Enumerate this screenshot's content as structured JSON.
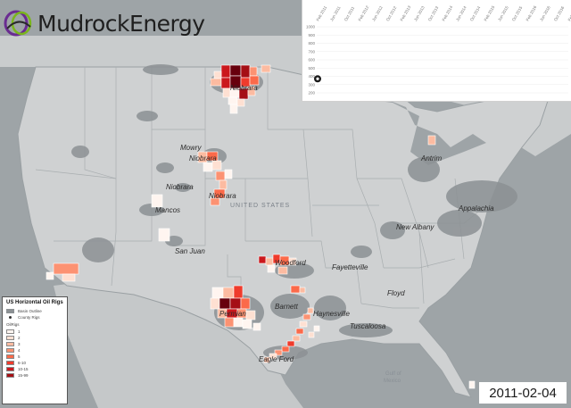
{
  "logo": {
    "text": "MudrockEnergy",
    "icon": "mudrock-logo-icon",
    "colors": {
      "dark": "#2a2a2a",
      "purple": "#6a2c91",
      "green": "#7ab51d"
    }
  },
  "chart": {
    "y_ticks": [
      "1000",
      "900",
      "800",
      "700",
      "600",
      "500",
      "400",
      "300",
      "200"
    ],
    "x_ticks": [
      "Feb 2011",
      "Jun 2011",
      "Oct 2011",
      "Feb 2012",
      "Jun 2012",
      "Oct 2012",
      "Feb 2013",
      "Jun 2013",
      "Oct 2013",
      "Feb 2014",
      "Jun 2014",
      "Oct 2014",
      "Feb 2015",
      "Jun 2015",
      "Oct 2015",
      "Feb 2016",
      "Jun 2016",
      "Oct 2016",
      "Feb 2017"
    ],
    "marker_icon": "timeline-marker-icon"
  },
  "chart_data": {
    "type": "line",
    "x": [
      "Feb 2011"
    ],
    "series": [
      {
        "values": [
          370
        ]
      }
    ],
    "ylim": [
      200,
      1000
    ]
  },
  "map": {
    "country_label": "UNITED STATES",
    "basins": [
      "Niobrara",
      "Mowry",
      "Niobrara",
      "Niobrara",
      "Niobrara",
      "Mancos",
      "San Juan",
      "Antrim",
      "Appalachia",
      "New Albany",
      "Woodford",
      "Fayetteville",
      "Floyd",
      "Barnett",
      "Permian",
      "Haynesville",
      "Tuscaloosa",
      "Eagle Ford"
    ],
    "water_labels": [
      "Gulf of",
      "Mexico"
    ],
    "colors": {
      "ramp": [
        "#fff5f0",
        "#fee0d2",
        "#fcbba1",
        "#fc9272",
        "#fb6a4a",
        "#ef3b2c",
        "#cb181d",
        "#a50f15",
        "#67000d"
      ]
    }
  },
  "legend": {
    "title": "US Horizontal Oil Rigs",
    "basin_outline": "Basin Outline",
    "county_rigs": "County Rigs",
    "oil_rigs": "OilRigs",
    "classes": [
      "1",
      "2",
      "3",
      "4",
      "5",
      "6-10",
      "10-15",
      "15-99"
    ]
  },
  "date": "2011-02-04"
}
